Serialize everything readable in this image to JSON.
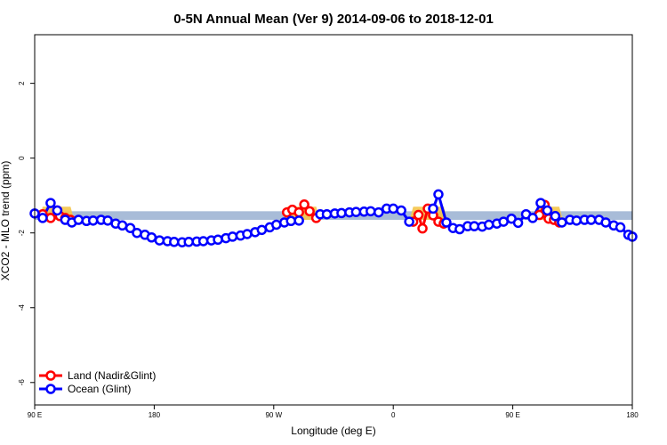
{
  "chart_data": {
    "type": "line",
    "title": "0-5N Annual Mean (Ver 9)   2014-09-06 to 2018-12-01",
    "xlabel": "Longitude (deg E)",
    "ylabel": "XCO2 - MLO trend (ppm)",
    "x_ticks": [
      {
        "value": 90,
        "label": "90 E"
      },
      {
        "value": 180,
        "label": "180"
      },
      {
        "value": 270,
        "label": "90 W"
      },
      {
        "value": 360,
        "label": "0"
      },
      {
        "value": 450,
        "label": "90 E"
      },
      {
        "value": 540,
        "label": "180"
      }
    ],
    "y_ticks": [
      {
        "value": 2,
        "label": "2"
      },
      {
        "value": 0,
        "label": "0"
      },
      {
        "value": -2,
        "label": "-2"
      },
      {
        "value": -4,
        "label": "-4"
      },
      {
        "value": -6,
        "label": "-6"
      }
    ],
    "xlim": [
      90,
      540
    ],
    "ylim": [
      -6.6,
      3.3
    ],
    "grid": false,
    "legend_position": "bottom-left",
    "band": {
      "y_low": -1.65,
      "y_high": -1.42,
      "color": "#a8bcd8"
    },
    "land_band_color": "#f5c54a",
    "series": [
      {
        "name": "Land (Nadir&Glint)",
        "color": "#ff0000",
        "points": [
          [
            96,
            -1.5
          ],
          [
            102,
            -1.6
          ],
          [
            107,
            -1.4
          ],
          [
            109,
            -1.55
          ],
          [
            113,
            -1.6
          ],
          [
            117,
            -1.65
          ],
          [
            280,
            -1.45
          ],
          [
            284,
            -1.38
          ],
          [
            289,
            -1.45
          ],
          [
            293,
            -1.24
          ],
          [
            297,
            -1.42
          ],
          [
            302,
            -1.6
          ],
          [
            375,
            -1.7
          ],
          [
            379,
            -1.52
          ],
          [
            382,
            -1.88
          ],
          [
            386,
            -1.35
          ],
          [
            390,
            -1.53
          ],
          [
            394,
            -1.7
          ],
          [
            398,
            -1.75
          ],
          [
            470,
            -1.52
          ],
          [
            474,
            -1.25
          ],
          [
            477,
            -1.62
          ],
          [
            481,
            -1.65
          ],
          [
            485,
            -1.72
          ]
        ]
      },
      {
        "name": "Ocean (Glint)",
        "color": "#0000ff",
        "points": [
          [
            90,
            -1.48
          ],
          [
            96,
            -1.6
          ],
          [
            102,
            -1.2
          ],
          [
            107,
            -1.4
          ],
          [
            113,
            -1.65
          ],
          [
            118,
            -1.72
          ],
          [
            123,
            -1.65
          ],
          [
            129,
            -1.68
          ],
          [
            134,
            -1.67
          ],
          [
            140,
            -1.65
          ],
          [
            145,
            -1.67
          ],
          [
            151,
            -1.75
          ],
          [
            156,
            -1.8
          ],
          [
            162,
            -1.87
          ],
          [
            167,
            -2.0
          ],
          [
            173,
            -2.05
          ],
          [
            178,
            -2.12
          ],
          [
            184,
            -2.2
          ],
          [
            190,
            -2.22
          ],
          [
            195,
            -2.24
          ],
          [
            201,
            -2.25
          ],
          [
            206,
            -2.24
          ],
          [
            212,
            -2.23
          ],
          [
            217,
            -2.22
          ],
          [
            223,
            -2.2
          ],
          [
            228,
            -2.18
          ],
          [
            234,
            -2.14
          ],
          [
            239,
            -2.1
          ],
          [
            245,
            -2.07
          ],
          [
            250,
            -2.03
          ],
          [
            256,
            -1.98
          ],
          [
            261,
            -1.92
          ],
          [
            267,
            -1.85
          ],
          [
            272,
            -1.78
          ],
          [
            278,
            -1.72
          ],
          [
            283,
            -1.68
          ],
          [
            289,
            -1.67
          ],
          [
            305,
            -1.5
          ],
          [
            310,
            -1.5
          ],
          [
            316,
            -1.48
          ],
          [
            321,
            -1.47
          ],
          [
            327,
            -1.45
          ],
          [
            332,
            -1.44
          ],
          [
            338,
            -1.43
          ],
          [
            343,
            -1.42
          ],
          [
            349,
            -1.45
          ],
          [
            355,
            -1.35
          ],
          [
            360,
            -1.35
          ],
          [
            366,
            -1.4
          ],
          [
            372,
            -1.7
          ],
          [
            390,
            -1.35
          ],
          [
            394,
            -0.97
          ],
          [
            400,
            -1.72
          ],
          [
            405,
            -1.87
          ],
          [
            410,
            -1.9
          ],
          [
            416,
            -1.82
          ],
          [
            421,
            -1.82
          ],
          [
            427,
            -1.83
          ],
          [
            432,
            -1.78
          ],
          [
            438,
            -1.75
          ],
          [
            443,
            -1.7
          ],
          [
            449,
            -1.62
          ],
          [
            454,
            -1.73
          ],
          [
            460,
            -1.5
          ],
          [
            465,
            -1.6
          ],
          [
            471,
            -1.2
          ],
          [
            476,
            -1.4
          ],
          [
            482,
            -1.55
          ],
          [
            487,
            -1.72
          ],
          [
            493,
            -1.65
          ],
          [
            498,
            -1.67
          ],
          [
            504,
            -1.65
          ],
          [
            509,
            -1.65
          ],
          [
            515,
            -1.65
          ],
          [
            520,
            -1.72
          ],
          [
            526,
            -1.8
          ],
          [
            531,
            -1.85
          ],
          [
            537,
            -2.05
          ],
          [
            540,
            -2.1
          ]
        ]
      }
    ]
  }
}
